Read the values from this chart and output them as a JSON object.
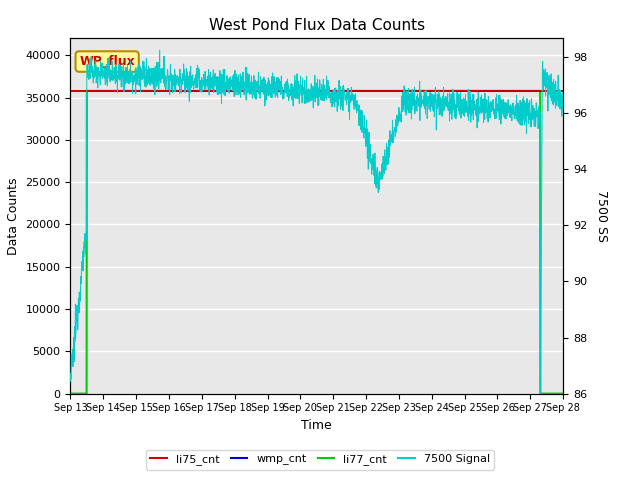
{
  "title": "West Pond Flux Data Counts",
  "xlabel": "Time",
  "ylabel": "Data Counts",
  "ylabel2": "7500 SS",
  "annotation_text": "WP_flux",
  "annotation_color": "#cc0000",
  "annotation_bg": "#ffff99",
  "annotation_border": "#bb8800",
  "ylim": [
    0,
    42000
  ],
  "ylim2": [
    86,
    98.667
  ],
  "xtick_labels": [
    "Sep 13",
    "Sep 14",
    "Sep 15",
    "Sep 16",
    "Sep 17",
    "Sep 18",
    "Sep 19",
    "Sep 20",
    "Sep 21",
    "Sep 22",
    "Sep 23",
    "Sep 24",
    "Sep 25",
    "Sep 26",
    "Sep 27",
    "Sep 28"
  ],
  "ytick_left": [
    0,
    5000,
    10000,
    15000,
    20000,
    25000,
    30000,
    35000,
    40000
  ],
  "ytick2": [
    86,
    88,
    90,
    92,
    94,
    96,
    98
  ],
  "bg_color": "#e8e8e8",
  "grid_color": "#ffffff",
  "li75_color": "#cc0000",
  "wmp_color": "#0000cc",
  "li77_color": "#00cc00",
  "signal_color": "#00cccc",
  "legend_entries": [
    "li75_cnt",
    "wmp_cnt",
    "li77_cnt",
    "7500 Signal"
  ],
  "flat_value": 35800,
  "start_day": 0.5,
  "end_day": 14.3,
  "total_days": 15
}
